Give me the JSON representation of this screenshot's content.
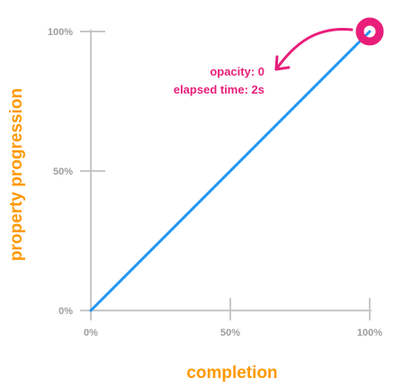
{
  "chart_data": {
    "type": "line",
    "xlabel": "completion",
    "ylabel": "property progression",
    "x_unit": "%",
    "y_unit": "%",
    "xlim": [
      0,
      100
    ],
    "ylim": [
      0,
      100
    ],
    "x_ticks": [
      0,
      50,
      100
    ],
    "y_ticks": [
      0,
      50,
      100
    ],
    "x_tick_labels": [
      "0%",
      "50%",
      "100%"
    ],
    "y_tick_labels": [
      "0%",
      "50%",
      "100%"
    ],
    "series": [
      {
        "x": [
          0,
          100
        ],
        "values": [
          0,
          100
        ],
        "color": "#2196f3"
      }
    ],
    "marker": {
      "x": 100,
      "y": 100,
      "color": "#e91e7a"
    },
    "annotation": {
      "lines": [
        "opacity: 0",
        "elapsed time: 2s"
      ],
      "color": "#e91e7a"
    },
    "axis_title_color": "#ff9800",
    "axis_color": "#c8c8c8",
    "tick_label_color": "#9e9e9e",
    "grid": false
  }
}
